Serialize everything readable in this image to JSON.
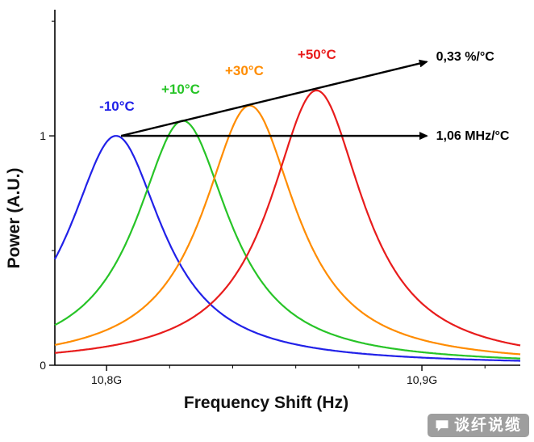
{
  "chart_data": {
    "type": "line",
    "title": "",
    "xlabel": "Frequency Shift (Hz)",
    "ylabel": "Power (A.U.)",
    "x_unit": "GHz",
    "xlim": [
      10.7836,
      10.9312
    ],
    "ylim": [
      0,
      1.55
    ],
    "xticks": [
      {
        "value": 10.8,
        "label": "10,8G"
      },
      {
        "value": 10.9,
        "label": "10,9G"
      }
    ],
    "minor_xticks": [
      10.82,
      10.84,
      10.86,
      10.88,
      10.92
    ],
    "yticks": [
      {
        "value": 0,
        "label": "0"
      },
      {
        "value": 1,
        "label": "1"
      }
    ],
    "minor_yticks": [
      0.5,
      1.5
    ],
    "grid": false,
    "curve_shape": "lorentzian",
    "fwhm": 0.036,
    "series": [
      {
        "name": "-10°C",
        "color": "#2121e8",
        "peak_center": 10.803,
        "peak_height": 1.0,
        "label_pos": [
          10.8033,
          1.11
        ]
      },
      {
        "name": "+10°C",
        "color": "#27c427",
        "peak_center": 10.8242,
        "peak_height": 1.066,
        "label_pos": [
          10.8235,
          1.184
        ]
      },
      {
        "name": "+30°C",
        "color": "#ff8c00",
        "peak_center": 10.8454,
        "peak_height": 1.132,
        "label_pos": [
          10.8437,
          1.265
        ]
      },
      {
        "name": "+50°C",
        "color": "#e81c1c",
        "peak_center": 10.8666,
        "peak_height": 1.198,
        "label_pos": [
          10.8667,
          1.335
        ]
      }
    ],
    "annotations": [
      {
        "type": "arrow",
        "from": [
          10.8046,
          1.0
        ],
        "to": [
          10.9015,
          1.323
        ],
        "label": "0,33 %/°C",
        "label_pos": [
          10.9045,
          1.345
        ]
      },
      {
        "type": "arrow",
        "from": [
          10.8046,
          1.0
        ],
        "to": [
          10.9015,
          1.0
        ],
        "label": "1,06 MHz/°C",
        "label_pos": [
          10.9045,
          1.0
        ]
      }
    ],
    "legend": "inline-labels"
  },
  "watermark": {
    "text": "谈纤说缆",
    "bg_color": "#9e9e9e",
    "text_color": "#ffffff"
  }
}
